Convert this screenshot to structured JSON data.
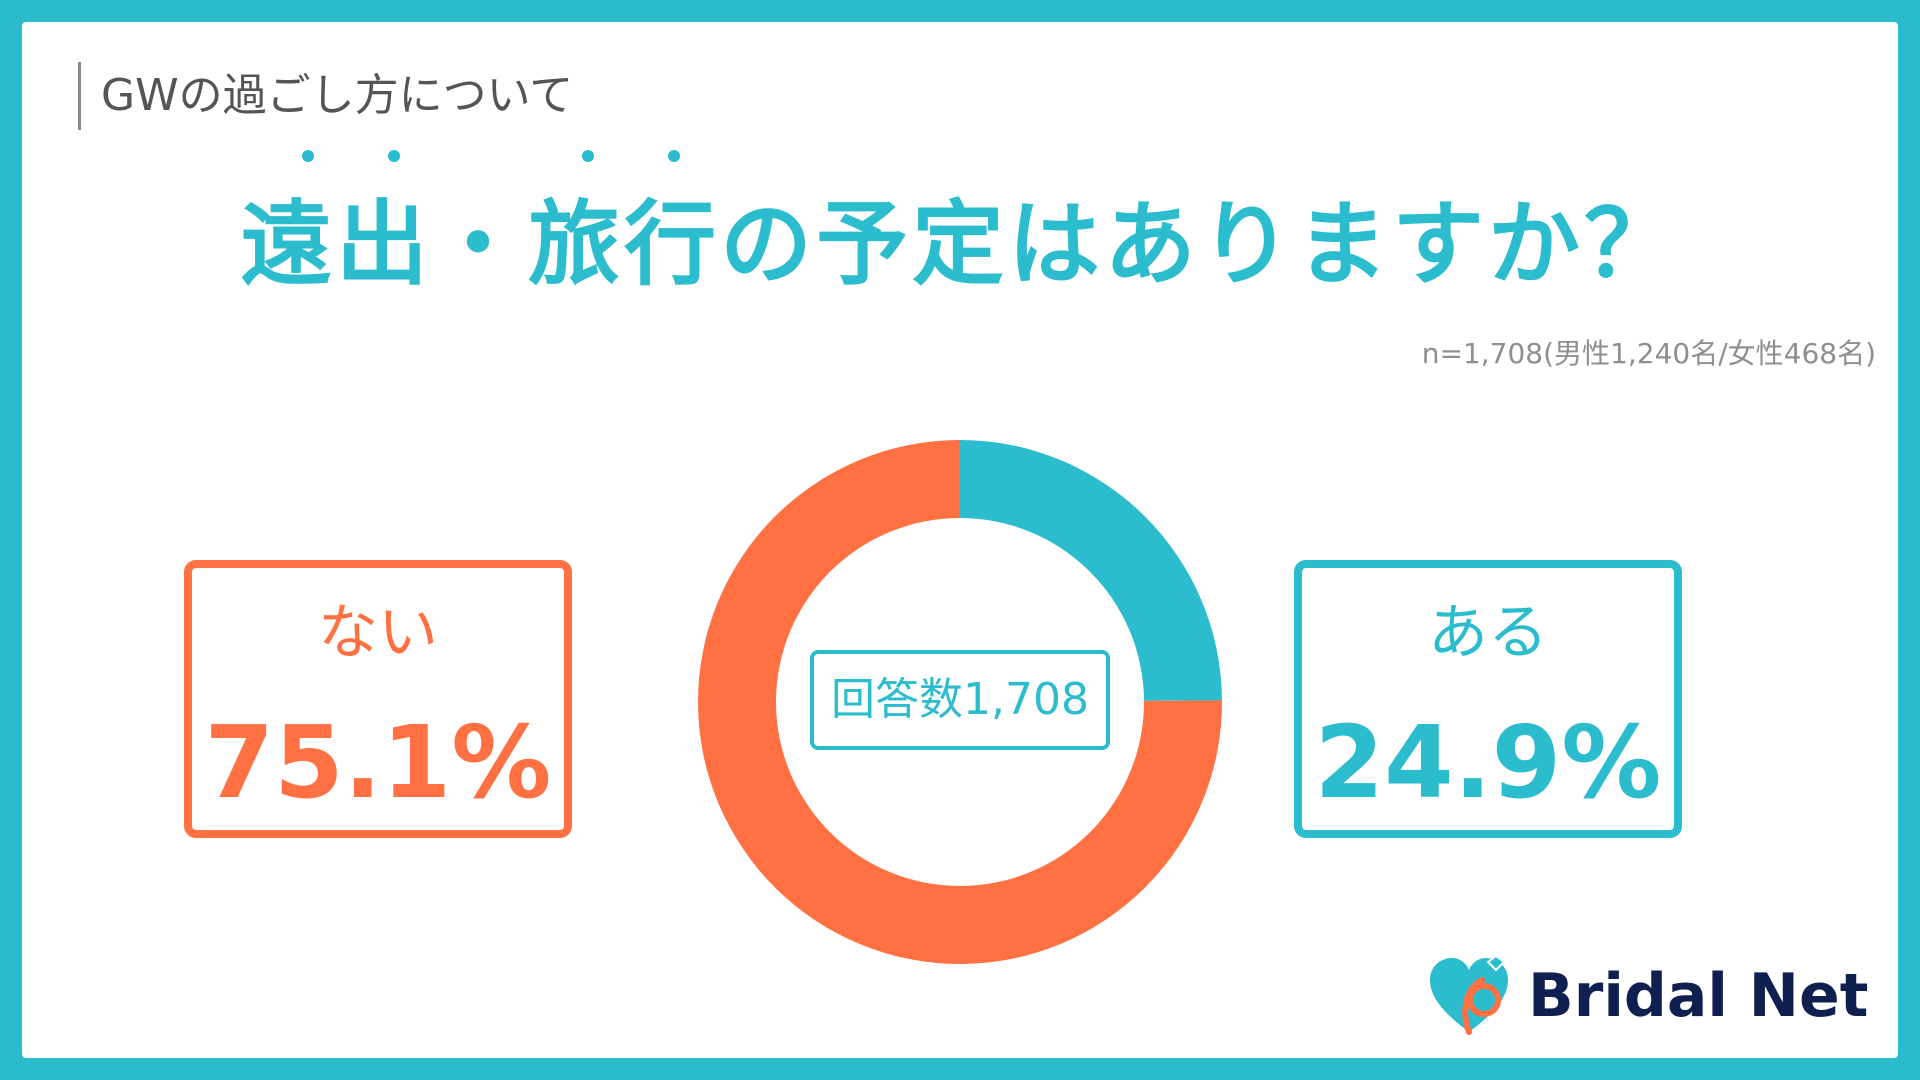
{
  "header": {
    "section_label": "GWの過ごし方について",
    "question": "遠出・旅行の予定はありますか？",
    "sample_note": "n=1,708(男性1,240名/女性468名)"
  },
  "answers": {
    "no": {
      "label": "ない",
      "value": "75.1%"
    },
    "yes": {
      "label": "ある",
      "value": "24.9%"
    }
  },
  "center_label": "回答数1,708",
  "brand": {
    "name": "Bridal Net"
  },
  "colors": {
    "teal": "#2bbccd",
    "orange": "#ff7043",
    "brand_navy": "#0f2050"
  },
  "chart_data": {
    "type": "pie",
    "style": "donut",
    "categories": [
      "ある",
      "ない"
    ],
    "values": [
      24.9,
      75.1
    ],
    "colors": [
      "#2bbccd",
      "#ff7043"
    ],
    "total_responses": 1708
  }
}
